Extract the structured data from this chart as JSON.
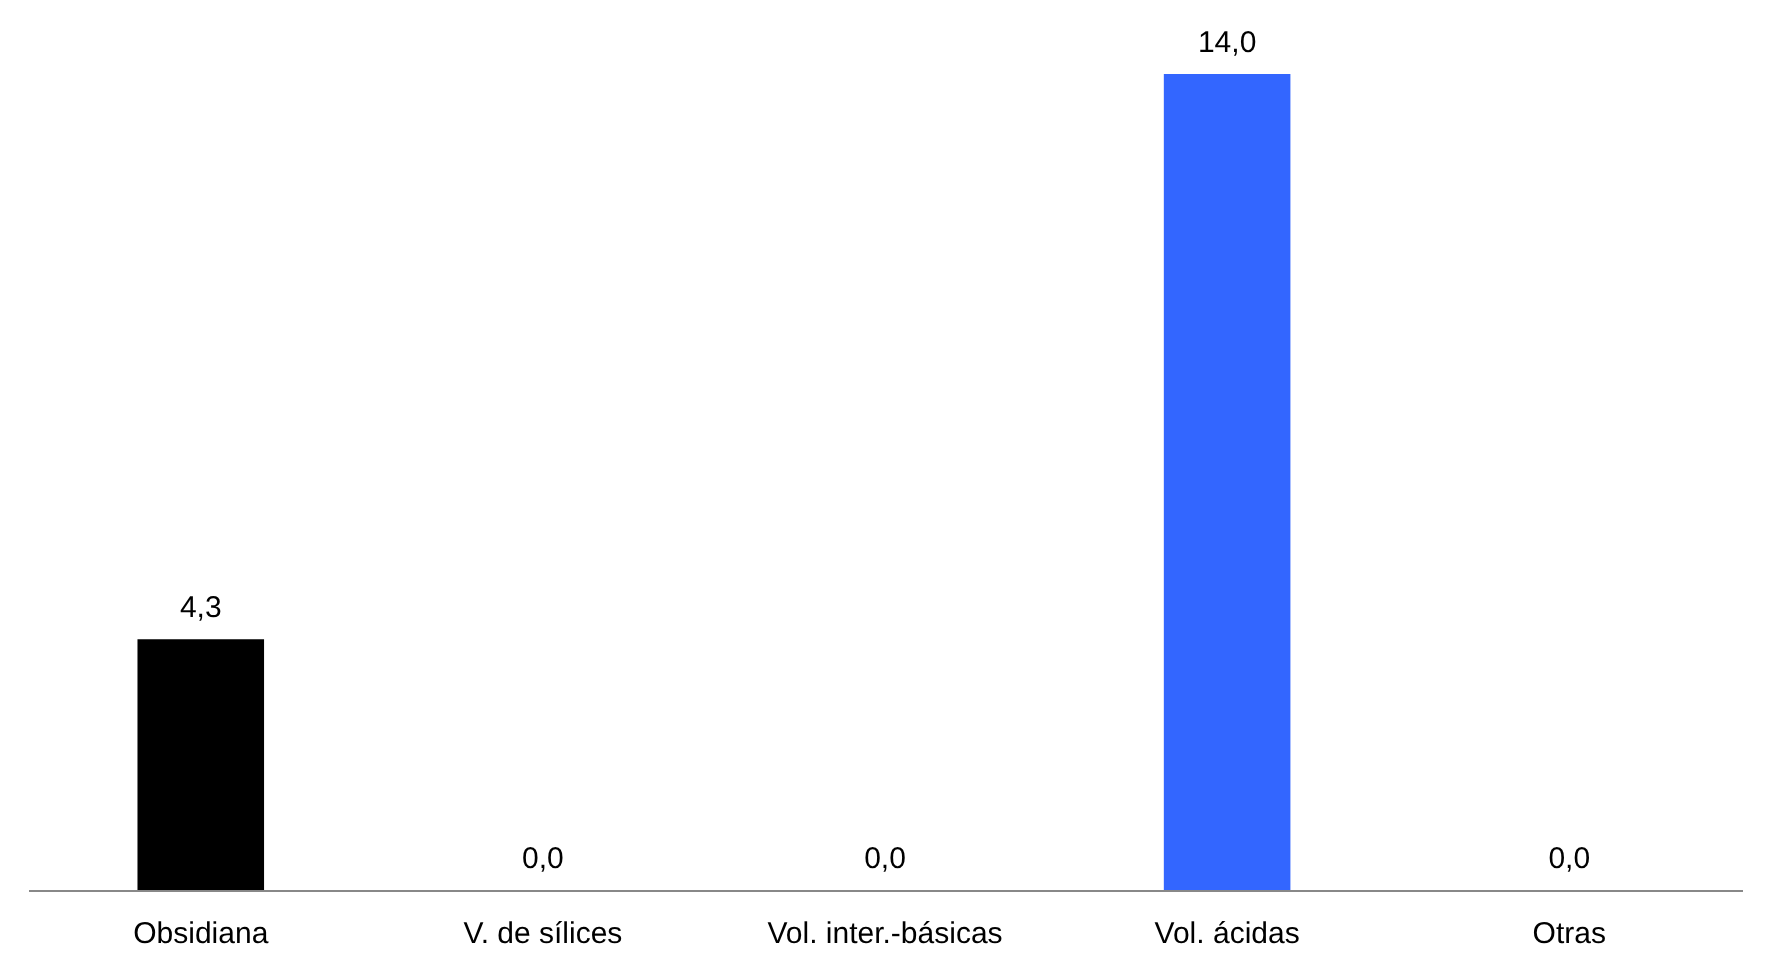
{
  "chart_data": {
    "type": "bar",
    "categories": [
      "Obsidiana",
      "V. de sílices",
      "Vol. inter.-básicas",
      "Vol. ácidas",
      "Otras"
    ],
    "values": [
      4.3,
      0.0,
      0.0,
      14.0,
      0.0
    ],
    "colors": [
      "#000000",
      "#000000",
      "#000000",
      "#3366ff",
      "#000000"
    ],
    "value_labels": [
      "4,3",
      "0,0",
      "0,0",
      "14,0",
      "0,0"
    ],
    "grid": false
  }
}
